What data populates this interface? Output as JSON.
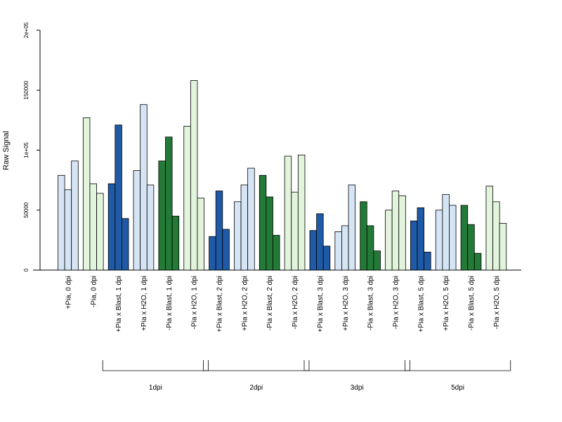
{
  "chart_data": {
    "type": "bar",
    "ylabel": "Raw Signal",
    "xlabel": "",
    "ylim": [
      0,
      200000
    ],
    "yticks": [
      {
        "value": 0,
        "label": "0"
      },
      {
        "value": 50000,
        "label": "50000"
      },
      {
        "value": 100000,
        "label": "1e+05"
      },
      {
        "value": 150000,
        "label": "150000"
      },
      {
        "value": 200000,
        "label": "2e+05"
      }
    ],
    "colors": {
      "light_blue": "#d6e5f5",
      "dark_blue": "#1f5aa6",
      "light_green": "#e2f5dc",
      "dark_green": "#237a37",
      "stroke": "#000000"
    },
    "categories": [
      {
        "label": "+Pia, 0 dpi",
        "color": "light_blue",
        "values": [
          79000,
          67000,
          91000
        ]
      },
      {
        "label": "-Pia, 0 dpi",
        "color": "light_green",
        "values": [
          127000,
          72000,
          64000
        ]
      },
      {
        "label": "+Pia x Blast, 1 dpi",
        "color": "dark_blue",
        "values": [
          72000,
          121000,
          43000
        ]
      },
      {
        "label": "+Pia x H2O, 1 dpi",
        "color": "light_blue",
        "values": [
          83000,
          138000,
          71000
        ]
      },
      {
        "label": "-Pia x Blast, 1 dpi",
        "color": "dark_green",
        "values": [
          91000,
          111000,
          45000
        ]
      },
      {
        "label": "-Pia x H2O, 1 dpi",
        "color": "light_green",
        "values": [
          120000,
          158000,
          60000
        ]
      },
      {
        "label": "+Pia x Blast, 2 dpi",
        "color": "dark_blue",
        "values": [
          28000,
          66000,
          34000
        ]
      },
      {
        "label": "+Pia x H2O, 2 dpi",
        "color": "light_blue",
        "values": [
          57000,
          71000,
          85000
        ]
      },
      {
        "label": "-Pia x Blast, 2 dpi",
        "color": "dark_green",
        "values": [
          79000,
          61000,
          29000
        ]
      },
      {
        "label": "-Pia x H2O, 2 dpi",
        "color": "light_green",
        "values": [
          95000,
          65000,
          96000
        ]
      },
      {
        "label": "+Pia x Blast, 3 dpi",
        "color": "dark_blue",
        "values": [
          33000,
          47000,
          20000
        ]
      },
      {
        "label": "+Pia x H2O, 3 dpi",
        "color": "light_blue",
        "values": [
          32000,
          37000,
          71000
        ]
      },
      {
        "label": "-Pia x Blast, 3 dpi",
        "color": "dark_green",
        "values": [
          57000,
          37000,
          16000
        ]
      },
      {
        "label": "-Pia x H2O, 3 dpi",
        "color": "light_green",
        "values": [
          50000,
          66000,
          62000
        ]
      },
      {
        "label": "+Pia x Blast, 5 dpi",
        "color": "dark_blue",
        "values": [
          41000,
          52000,
          15000
        ]
      },
      {
        "label": "+Pia x H2O, 5 dpi",
        "color": "light_blue",
        "values": [
          50000,
          63000,
          54000
        ]
      },
      {
        "label": "-Pia x Blast, 5 dpi",
        "color": "dark_green",
        "values": [
          54000,
          38000,
          14000
        ]
      },
      {
        "label": "-Pia x H2O, 5 dpi",
        "color": "light_green",
        "values": [
          70000,
          57000,
          39000
        ]
      }
    ],
    "groups": [
      {
        "label": "1dpi",
        "start_category": 2,
        "end_category": 5
      },
      {
        "label": "2dpi",
        "start_category": 6,
        "end_category": 9
      },
      {
        "label": "3dpi",
        "start_category": 10,
        "end_category": 13
      },
      {
        "label": "5dpi",
        "start_category": 14,
        "end_category": 17
      }
    ],
    "grid": false,
    "legend": "none"
  }
}
